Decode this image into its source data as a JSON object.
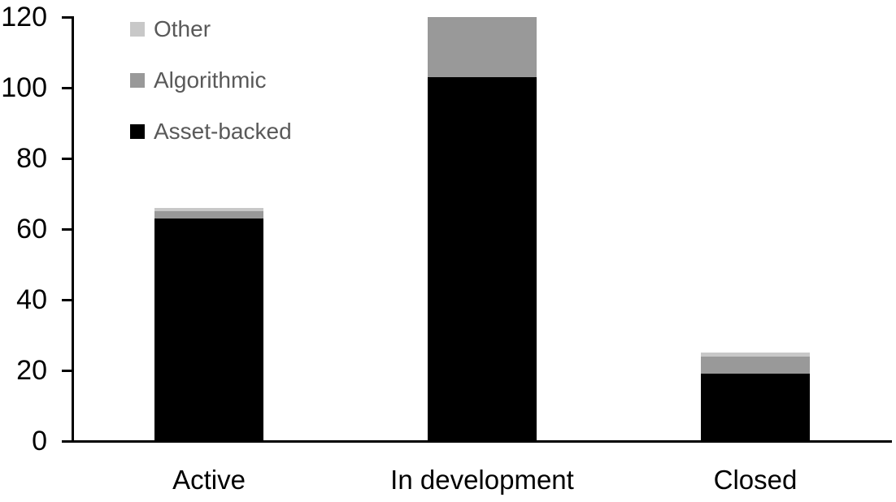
{
  "chart_data": {
    "type": "bar",
    "stacked": true,
    "title": "",
    "xlabel": "",
    "ylabel": "",
    "categories": [
      "Active",
      "In development",
      "Closed"
    ],
    "series": [
      {
        "name": "Asset-backed",
        "color": "#000000",
        "values": [
          63,
          103,
          19
        ]
      },
      {
        "name": "Algorithmic",
        "color": "#999999",
        "values": [
          2,
          17,
          5
        ]
      },
      {
        "name": "Other",
        "color": "#c8c8c8",
        "values": [
          1,
          0,
          1
        ]
      }
    ],
    "ylim": [
      0,
      120
    ],
    "yticks": [
      0,
      20,
      40,
      60,
      80,
      100,
      120
    ],
    "grid": false,
    "legend_position": "top-left",
    "legend_order": [
      "Other",
      "Algorithmic",
      "Asset-backed"
    ],
    "legend_text_color": "#595959",
    "axis_color": "#000000",
    "background": "#ffffff"
  }
}
